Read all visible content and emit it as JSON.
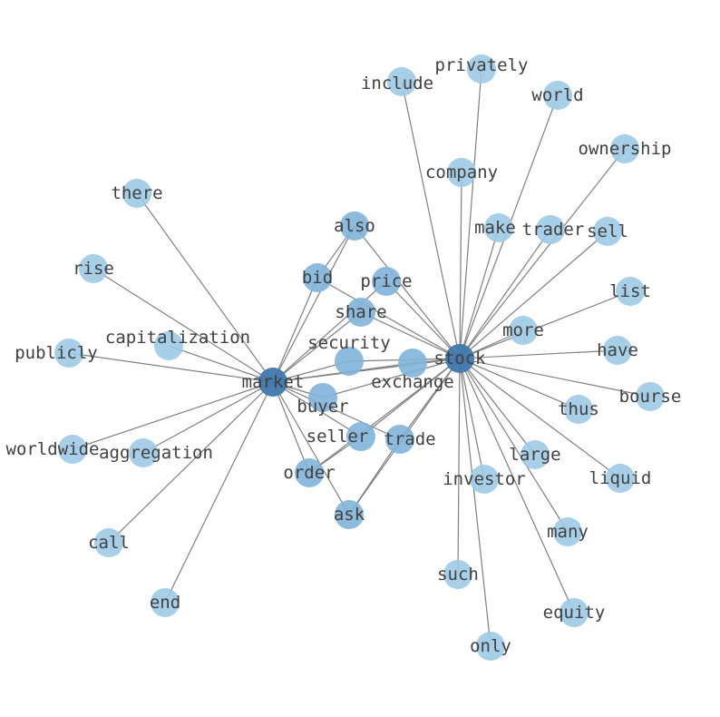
{
  "colors": {
    "hub": "#3f78ad",
    "mid": "#7fb4da",
    "leaf": "#9ecae5",
    "edge": "#808080",
    "text": "#404040"
  },
  "nodes": [
    {
      "id": "stock",
      "label": "stock",
      "tier": "hub"
    },
    {
      "id": "market",
      "label": "market",
      "tier": "hub"
    },
    {
      "id": "include",
      "label": "include",
      "tier": "leaf"
    },
    {
      "id": "privately",
      "label": "privately",
      "tier": "leaf"
    },
    {
      "id": "world",
      "label": "world",
      "tier": "leaf"
    },
    {
      "id": "ownership",
      "label": "ownership",
      "tier": "leaf"
    },
    {
      "id": "company",
      "label": "company",
      "tier": "leaf"
    },
    {
      "id": "there",
      "label": "there",
      "tier": "leaf"
    },
    {
      "id": "make",
      "label": "make",
      "tier": "leaf"
    },
    {
      "id": "trader",
      "label": "trader",
      "tier": "leaf"
    },
    {
      "id": "sell",
      "label": "sell",
      "tier": "leaf"
    },
    {
      "id": "also",
      "label": "also",
      "tier": "mid"
    },
    {
      "id": "rise",
      "label": "rise",
      "tier": "leaf"
    },
    {
      "id": "bid",
      "label": "bid",
      "tier": "mid"
    },
    {
      "id": "price",
      "label": "price",
      "tier": "mid"
    },
    {
      "id": "list",
      "label": "list",
      "tier": "leaf"
    },
    {
      "id": "share",
      "label": "share",
      "tier": "mid"
    },
    {
      "id": "more",
      "label": "more",
      "tier": "leaf"
    },
    {
      "id": "publicly",
      "label": "publicly",
      "tier": "leaf"
    },
    {
      "id": "capitalization",
      "label": "capitalization",
      "tier": "leaf"
    },
    {
      "id": "security",
      "label": "security",
      "tier": "mid"
    },
    {
      "id": "exchange",
      "label": "exchange",
      "tier": "mid"
    },
    {
      "id": "have",
      "label": "have",
      "tier": "leaf"
    },
    {
      "id": "buyer",
      "label": "buyer",
      "tier": "mid"
    },
    {
      "id": "bourse",
      "label": "bourse",
      "tier": "leaf"
    },
    {
      "id": "thus",
      "label": "thus",
      "tier": "leaf"
    },
    {
      "id": "seller",
      "label": "seller",
      "tier": "mid"
    },
    {
      "id": "trade",
      "label": "trade",
      "tier": "mid"
    },
    {
      "id": "worldwide",
      "label": "worldwide",
      "tier": "leaf"
    },
    {
      "id": "aggregation",
      "label": "aggregation",
      "tier": "leaf"
    },
    {
      "id": "large",
      "label": "large",
      "tier": "leaf"
    },
    {
      "id": "order",
      "label": "order",
      "tier": "mid"
    },
    {
      "id": "investor",
      "label": "investor",
      "tier": "leaf"
    },
    {
      "id": "liquid",
      "label": "liquid",
      "tier": "leaf"
    },
    {
      "id": "ask",
      "label": "ask",
      "tier": "mid"
    },
    {
      "id": "call",
      "label": "call",
      "tier": "leaf"
    },
    {
      "id": "many",
      "label": "many",
      "tier": "leaf"
    },
    {
      "id": "such",
      "label": "such",
      "tier": "leaf"
    },
    {
      "id": "end",
      "label": "end",
      "tier": "leaf"
    },
    {
      "id": "equity",
      "label": "equity",
      "tier": "leaf"
    },
    {
      "id": "only",
      "label": "only",
      "tier": "leaf"
    }
  ],
  "edges": [
    [
      "stock",
      "include"
    ],
    [
      "stock",
      "privately"
    ],
    [
      "stock",
      "world"
    ],
    [
      "stock",
      "ownership"
    ],
    [
      "stock",
      "company"
    ],
    [
      "stock",
      "make"
    ],
    [
      "stock",
      "trader"
    ],
    [
      "stock",
      "sell"
    ],
    [
      "stock",
      "list"
    ],
    [
      "stock",
      "more"
    ],
    [
      "stock",
      "have"
    ],
    [
      "stock",
      "bourse"
    ],
    [
      "stock",
      "thus"
    ],
    [
      "stock",
      "liquid"
    ],
    [
      "stock",
      "large"
    ],
    [
      "stock",
      "many"
    ],
    [
      "stock",
      "equity"
    ],
    [
      "stock",
      "only"
    ],
    [
      "stock",
      "such"
    ],
    [
      "stock",
      "investor"
    ],
    [
      "stock",
      "also"
    ],
    [
      "stock",
      "bid"
    ],
    [
      "stock",
      "price"
    ],
    [
      "stock",
      "share"
    ],
    [
      "stock",
      "security"
    ],
    [
      "stock",
      "exchange"
    ],
    [
      "stock",
      "buyer"
    ],
    [
      "stock",
      "seller"
    ],
    [
      "stock",
      "trade"
    ],
    [
      "stock",
      "order"
    ],
    [
      "stock",
      "ask"
    ],
    [
      "stock",
      "market"
    ],
    [
      "market",
      "there"
    ],
    [
      "market",
      "rise"
    ],
    [
      "market",
      "publicly"
    ],
    [
      "market",
      "capitalization"
    ],
    [
      "market",
      "worldwide"
    ],
    [
      "market",
      "aggregation"
    ],
    [
      "market",
      "call"
    ],
    [
      "market",
      "end"
    ],
    [
      "market",
      "order"
    ],
    [
      "market",
      "ask"
    ],
    [
      "market",
      "bid"
    ],
    [
      "market",
      "also"
    ],
    [
      "market",
      "share"
    ],
    [
      "market",
      "price"
    ],
    [
      "market",
      "security"
    ],
    [
      "market",
      "exchange"
    ],
    [
      "market",
      "buyer"
    ],
    [
      "market",
      "seller"
    ],
    [
      "market",
      "trade"
    ],
    [
      "also",
      "bid"
    ],
    [
      "ask",
      "trade"
    ],
    [
      "order",
      "seller"
    ]
  ]
}
